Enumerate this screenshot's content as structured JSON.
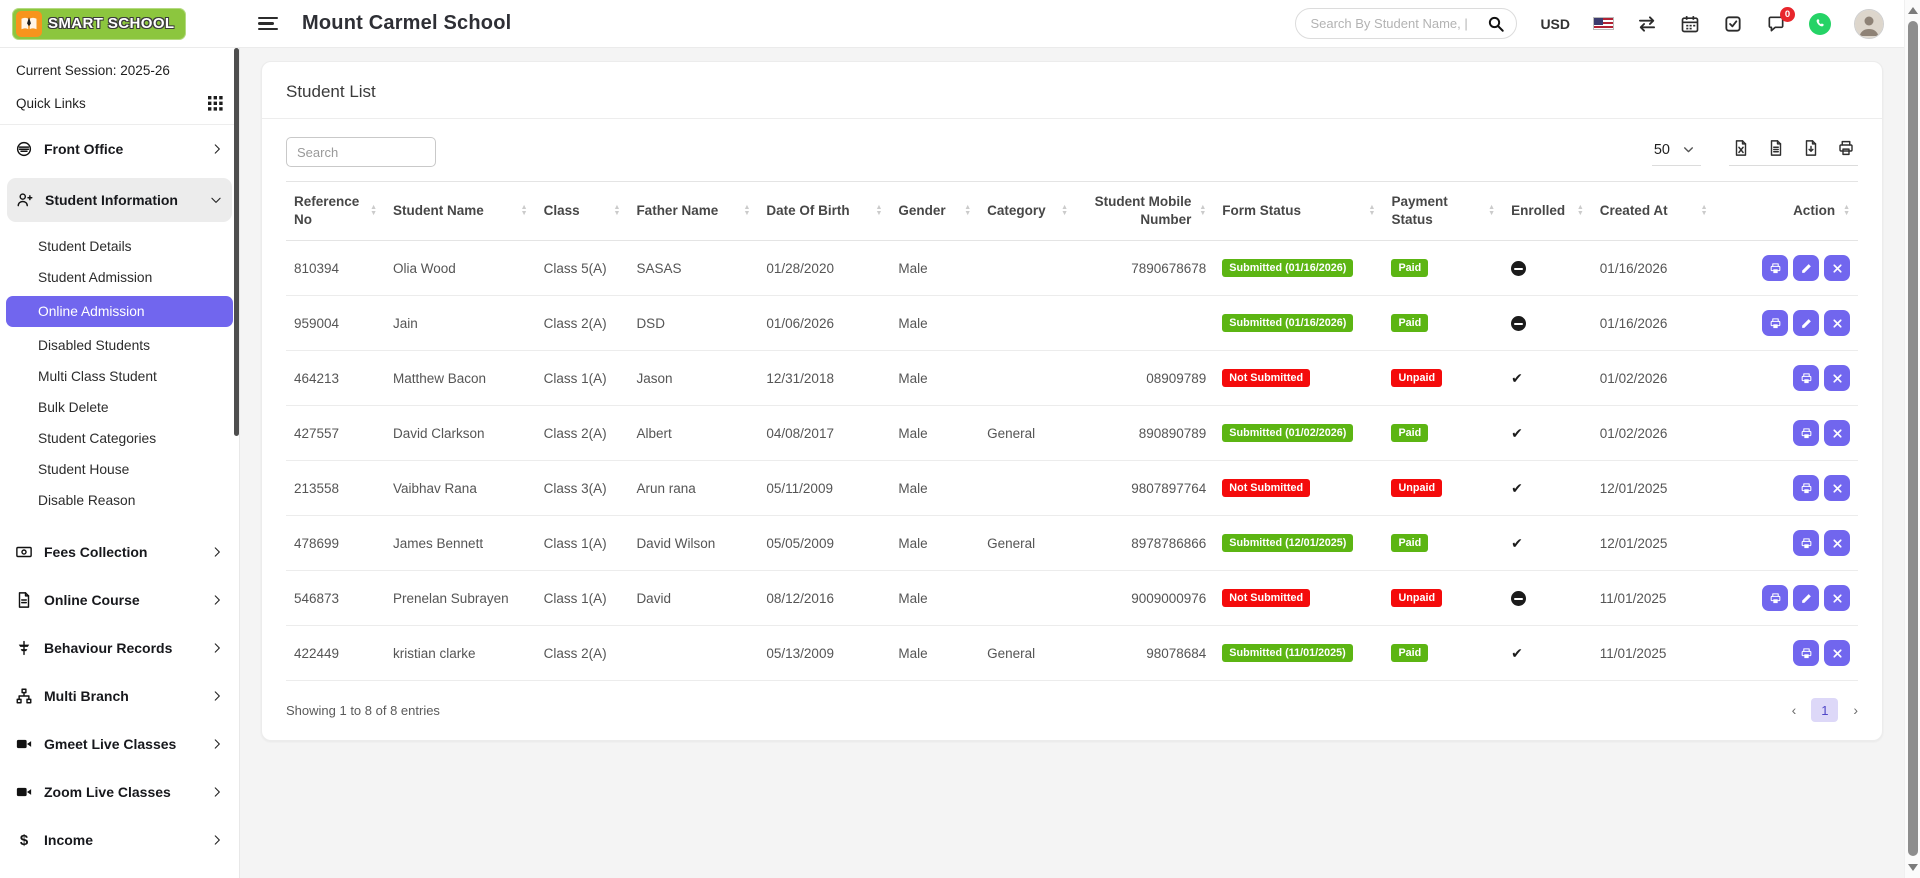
{
  "brand": {
    "logo_text": "SMART SCHOOL"
  },
  "header": {
    "school_name": "Mount Carmel School",
    "search_placeholder": "Search By Student Name, |",
    "currency": "USD",
    "chat_badge": "0",
    "icons": [
      "search-icon",
      "us-flag-icon",
      "swap-icon",
      "calendar-icon",
      "todo-check-icon",
      "messages-icon",
      "whatsapp-icon",
      "user-avatar"
    ]
  },
  "sidebar": {
    "session_label": "Current Session: 2025-26",
    "quick_links_label": "Quick Links",
    "menu": [
      {
        "label": "Front Office",
        "icon": "front-office",
        "expanded": false
      },
      {
        "label": "Student Information",
        "icon": "student-info",
        "expanded": true,
        "children": [
          "Student Details",
          "Student Admission",
          "Online Admission",
          "Disabled Students",
          "Multi Class Student",
          "Bulk Delete",
          "Student Categories",
          "Student House",
          "Disable Reason"
        ],
        "active_child": "Online Admission"
      },
      {
        "label": "Fees Collection",
        "icon": "fees",
        "expanded": false
      },
      {
        "label": "Online Course",
        "icon": "course",
        "expanded": false
      },
      {
        "label": "Behaviour Records",
        "icon": "behaviour",
        "expanded": false
      },
      {
        "label": "Multi Branch",
        "icon": "branch",
        "expanded": false
      },
      {
        "label": "Gmeet Live Classes",
        "icon": "video",
        "expanded": false
      },
      {
        "label": "Zoom Live Classes",
        "icon": "video",
        "expanded": false
      },
      {
        "label": "Income",
        "icon": "dollar",
        "expanded": false
      }
    ]
  },
  "main": {
    "card_title": "Student List",
    "table_search_placeholder": "Search",
    "page_size": "50",
    "export_icons": [
      "excel-export",
      "csv-export",
      "pdf-export",
      "print-table"
    ],
    "table": {
      "columns": [
        "Reference No",
        "Student Name",
        "Class",
        "Father Name",
        "Date Of Birth",
        "Gender",
        "Category",
        "Student Mobile Number",
        "Form Status",
        "Payment Status",
        "Enrolled",
        "Created At",
        "Action"
      ],
      "rows": [
        {
          "reference_no": "810394",
          "student_name": "Olia Wood",
          "class_name": "Class 5(A)",
          "father_name": "SASAS",
          "dob": "01/28/2020",
          "gender": "Male",
          "category": "",
          "mobile": "7890678678",
          "form_status": {
            "text": "Submitted (01/16/2026)",
            "state": "green"
          },
          "payment_status": {
            "text": "Paid",
            "state": "green"
          },
          "enrolled": "minus",
          "created_at": "01/16/2026",
          "actions": [
            "print",
            "edit",
            "delete"
          ]
        },
        {
          "reference_no": "959004",
          "student_name": "Jain",
          "class_name": "Class 2(A)",
          "father_name": "DSD",
          "dob": "01/06/2026",
          "gender": "Male",
          "category": "",
          "mobile": "",
          "form_status": {
            "text": "Submitted (01/16/2026)",
            "state": "green"
          },
          "payment_status": {
            "text": "Paid",
            "state": "green"
          },
          "enrolled": "minus",
          "created_at": "01/16/2026",
          "actions": [
            "print",
            "edit",
            "delete"
          ]
        },
        {
          "reference_no": "464213",
          "student_name": "Matthew Bacon",
          "class_name": "Class 1(A)",
          "father_name": "Jason",
          "dob": "12/31/2018",
          "gender": "Male",
          "category": "",
          "mobile": "08909789",
          "form_status": {
            "text": "Not Submitted",
            "state": "red"
          },
          "payment_status": {
            "text": "Unpaid",
            "state": "red"
          },
          "enrolled": "check",
          "created_at": "01/02/2026",
          "actions": [
            "print",
            "delete"
          ]
        },
        {
          "reference_no": "427557",
          "student_name": "David Clarkson",
          "class_name": "Class 2(A)",
          "father_name": "Albert",
          "dob": "04/08/2017",
          "gender": "Male",
          "category": "General",
          "mobile": "890890789",
          "form_status": {
            "text": "Submitted (01/02/2026)",
            "state": "green"
          },
          "payment_status": {
            "text": "Paid",
            "state": "green"
          },
          "enrolled": "check",
          "created_at": "01/02/2026",
          "actions": [
            "print",
            "delete"
          ]
        },
        {
          "reference_no": "213558",
          "student_name": "Vaibhav Rana",
          "class_name": "Class 3(A)",
          "father_name": "Arun rana",
          "dob": "05/11/2009",
          "gender": "Male",
          "category": "",
          "mobile": "9807897764",
          "form_status": {
            "text": "Not Submitted",
            "state": "red"
          },
          "payment_status": {
            "text": "Unpaid",
            "state": "red"
          },
          "enrolled": "check",
          "created_at": "12/01/2025",
          "actions": [
            "print",
            "delete"
          ]
        },
        {
          "reference_no": "478699",
          "student_name": "James Bennett",
          "class_name": "Class 1(A)",
          "father_name": "David Wilson",
          "dob": "05/05/2009",
          "gender": "Male",
          "category": "General",
          "mobile": "8978786866",
          "form_status": {
            "text": "Submitted (12/01/2025)",
            "state": "green"
          },
          "payment_status": {
            "text": "Paid",
            "state": "green"
          },
          "enrolled": "check",
          "created_at": "12/01/2025",
          "actions": [
            "print",
            "delete"
          ]
        },
        {
          "reference_no": "546873",
          "student_name": "Prenelan Subrayen",
          "class_name": "Class 1(A)",
          "father_name": "David",
          "dob": "08/12/2016",
          "gender": "Male",
          "category": "",
          "mobile": "9009000976",
          "form_status": {
            "text": "Not Submitted",
            "state": "red"
          },
          "payment_status": {
            "text": "Unpaid",
            "state": "red"
          },
          "enrolled": "minus",
          "created_at": "11/01/2025",
          "actions": [
            "print",
            "edit",
            "delete"
          ]
        },
        {
          "reference_no": "422449",
          "student_name": "kristian clarke",
          "class_name": "Class 2(A)",
          "father_name": "",
          "dob": "05/13/2009",
          "gender": "Male",
          "category": "General",
          "mobile": "98078684",
          "form_status": {
            "text": "Submitted (11/01/2025)",
            "state": "green"
          },
          "payment_status": {
            "text": "Paid",
            "state": "green"
          },
          "enrolled": "check",
          "created_at": "11/01/2025",
          "actions": [
            "print",
            "delete"
          ]
        }
      ]
    },
    "footer": {
      "showing_text": "Showing 1 to 8 of 8 entries",
      "prev_label": "‹",
      "page": "1",
      "next_label": "›"
    }
  },
  "colors": {
    "accent": "#7166ee",
    "green": "#5cb513",
    "red": "#f40b0b",
    "logo_green": "#8cc63e",
    "logo_orange": "#f7941d",
    "whatsapp": "#25d366",
    "badge_red": "#e8262c"
  }
}
